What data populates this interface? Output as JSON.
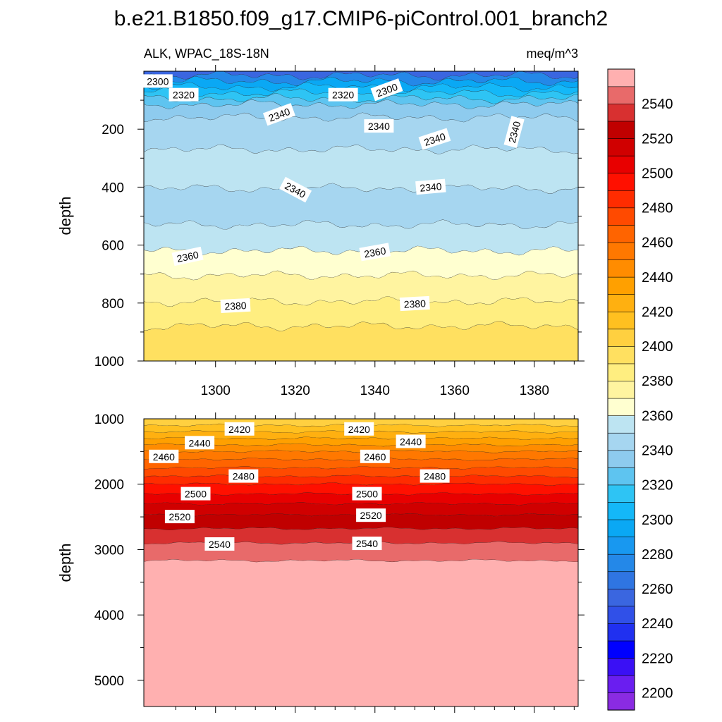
{
  "chart_data": {
    "type": "contour",
    "title": "b.e21.B1850.f09_g17.CMIP6-piControl.001_branch2",
    "variable_label": "ALK, WPAC_18S-18N",
    "units_label": "meq/m^3",
    "colorbar": {
      "levels": [
        2200,
        2210,
        2220,
        2230,
        2240,
        2250,
        2260,
        2270,
        2280,
        2290,
        2300,
        2310,
        2320,
        2330,
        2340,
        2350,
        2360,
        2370,
        2380,
        2390,
        2400,
        2410,
        2420,
        2430,
        2440,
        2450,
        2460,
        2470,
        2480,
        2490,
        2500,
        2510,
        2520,
        2530,
        2540,
        2550
      ],
      "colors": [
        "#8a2be2",
        "#6a1ef0",
        "#3a10f5",
        "#0000ff",
        "#2030f0",
        "#3050e8",
        "#3a66e0",
        "#2f75e2",
        "#2488e8",
        "#1898f0",
        "#0aa8f4",
        "#14b8f8",
        "#2ec4f4",
        "#5ec4f0",
        "#8ecbee",
        "#a6d6f0",
        "#bde4f2",
        "#ffffd0",
        "#fff4a0",
        "#ffee80",
        "#ffe060",
        "#ffd040",
        "#ffc020",
        "#ffb010",
        "#ffa000",
        "#ff8c00",
        "#ff7800",
        "#ff6400",
        "#ff4a00",
        "#ff2c00",
        "#ff1000",
        "#e80000",
        "#d00000",
        "#c00000",
        "#d83030",
        "#e86a6a",
        "#ffb0b0"
      ],
      "tick_labels": [
        "2200",
        "2220",
        "2240",
        "2260",
        "2280",
        "2300",
        "2320",
        "2340",
        "2360",
        "2380",
        "2400",
        "2420",
        "2440",
        "2460",
        "2480",
        "2500",
        "2520",
        "2540"
      ]
    },
    "panels": [
      {
        "name": "upper",
        "ylabel": "depth",
        "x_range": [
          1282,
          1391
        ],
        "x_ticks": [
          1300,
          1320,
          1340,
          1360,
          1380
        ],
        "x_tick_labels": [
          "1300",
          "1320",
          "1340",
          "1360",
          "1380"
        ],
        "y_range": [
          1000,
          0
        ],
        "y_ticks": [
          200,
          400,
          600,
          800,
          1000
        ],
        "y_tick_labels": [
          "200",
          "400",
          "600",
          "800",
          "1000"
        ],
        "contour_labels": [
          {
            "text": "2300",
            "x": 1285.5,
            "y": 35,
            "angle": 0
          },
          {
            "text": "2320",
            "x": 1292,
            "y": 82,
            "angle": 0
          },
          {
            "text": "2320",
            "x": 1332,
            "y": 82,
            "angle": 0
          },
          {
            "text": "2300",
            "x": 1343,
            "y": 65,
            "angle": -20
          },
          {
            "text": "2340",
            "x": 1316,
            "y": 150,
            "angle": -20
          },
          {
            "text": "2340",
            "x": 1341,
            "y": 190,
            "angle": 0
          },
          {
            "text": "2340",
            "x": 1355,
            "y": 235,
            "angle": -18
          },
          {
            "text": "2340",
            "x": 1375,
            "y": 210,
            "angle": -75
          },
          {
            "text": "2340",
            "x": 1320,
            "y": 410,
            "angle": 28
          },
          {
            "text": "2340",
            "x": 1354,
            "y": 400,
            "angle": -5
          },
          {
            "text": "2360",
            "x": 1293,
            "y": 640,
            "angle": -12
          },
          {
            "text": "2360",
            "x": 1340,
            "y": 625,
            "angle": -10
          },
          {
            "text": "2380",
            "x": 1305,
            "y": 810,
            "angle": -3
          },
          {
            "text": "2380",
            "x": 1350,
            "y": 803,
            "angle": -3
          }
        ]
      },
      {
        "name": "lower",
        "ylabel": "depth",
        "x_range": [
          1282,
          1391
        ],
        "x_ticks": [
          1300,
          1320,
          1340,
          1360,
          1380
        ],
        "x_tick_labels": [],
        "y_range": [
          5400,
          1000
        ],
        "y_ticks": [
          1000,
          2000,
          3000,
          4000,
          5000
        ],
        "y_tick_labels": [
          "1000",
          "2000",
          "3000",
          "4000",
          "5000"
        ],
        "contour_labels": [
          {
            "text": "2420",
            "x": 1306,
            "y": 1160,
            "angle": 0
          },
          {
            "text": "2420",
            "x": 1336,
            "y": 1160,
            "angle": 0
          },
          {
            "text": "2440",
            "x": 1296,
            "y": 1370,
            "angle": 0
          },
          {
            "text": "2440",
            "x": 1349,
            "y": 1350,
            "angle": 0
          },
          {
            "text": "2460",
            "x": 1287,
            "y": 1580,
            "angle": 0
          },
          {
            "text": "2460",
            "x": 1340,
            "y": 1580,
            "angle": 0
          },
          {
            "text": "2480",
            "x": 1307,
            "y": 1880,
            "angle": 0
          },
          {
            "text": "2480",
            "x": 1355,
            "y": 1880,
            "angle": 0
          },
          {
            "text": "2500",
            "x": 1295,
            "y": 2150,
            "angle": 0
          },
          {
            "text": "2500",
            "x": 1338,
            "y": 2150,
            "angle": 0
          },
          {
            "text": "2520",
            "x": 1291,
            "y": 2500,
            "angle": 0
          },
          {
            "text": "2520",
            "x": 1339,
            "y": 2480,
            "angle": 0
          },
          {
            "text": "2540",
            "x": 1301,
            "y": 2920,
            "angle": 0
          },
          {
            "text": "2540",
            "x": 1338,
            "y": 2910,
            "angle": 0
          }
        ]
      }
    ],
    "upper_bands": [
      {
        "value": 2250,
        "top": 0,
        "bottom": 15
      },
      {
        "value": 2270,
        "top": 15,
        "bottom": 35
      },
      {
        "value": 2290,
        "top": 35,
        "bottom": 55
      },
      {
        "value": 2300,
        "top": 55,
        "bottom": 75
      },
      {
        "value": 2310,
        "top": 75,
        "bottom": 95
      },
      {
        "value": 2320,
        "top": 95,
        "bottom": 115
      },
      {
        "value": 2330,
        "top": 115,
        "bottom": 160
      },
      {
        "value": 2340,
        "top": 160,
        "bottom": 270
      },
      {
        "value": 2350,
        "top": 270,
        "bottom": 405
      },
      {
        "value": 2340,
        "top": 405,
        "bottom": 530
      },
      {
        "value": 2350,
        "top": 530,
        "bottom": 620
      },
      {
        "value": 2360,
        "top": 620,
        "bottom": 705
      },
      {
        "value": 2370,
        "top": 705,
        "bottom": 795
      },
      {
        "value": 2380,
        "top": 795,
        "bottom": 880
      },
      {
        "value": 2390,
        "top": 880,
        "bottom": 1000
      }
    ],
    "lower_bands": [
      {
        "value": 2405,
        "top": 1000,
        "bottom": 1100
      },
      {
        "value": 2415,
        "top": 1100,
        "bottom": 1200
      },
      {
        "value": 2425,
        "top": 1200,
        "bottom": 1300
      },
      {
        "value": 2435,
        "top": 1300,
        "bottom": 1400
      },
      {
        "value": 2445,
        "top": 1400,
        "bottom": 1500
      },
      {
        "value": 2455,
        "top": 1500,
        "bottom": 1620
      },
      {
        "value": 2465,
        "top": 1620,
        "bottom": 1750
      },
      {
        "value": 2475,
        "top": 1750,
        "bottom": 1880
      },
      {
        "value": 2485,
        "top": 1880,
        "bottom": 2000
      },
      {
        "value": 2495,
        "top": 2000,
        "bottom": 2150
      },
      {
        "value": 2505,
        "top": 2150,
        "bottom": 2300
      },
      {
        "value": 2515,
        "top": 2300,
        "bottom": 2470
      },
      {
        "value": 2525,
        "top": 2470,
        "bottom": 2680
      },
      {
        "value": 2535,
        "top": 2680,
        "bottom": 2900
      },
      {
        "value": 2545,
        "top": 2900,
        "bottom": 3170
      },
      {
        "value": 2555,
        "top": 3170,
        "bottom": 5400
      }
    ]
  }
}
